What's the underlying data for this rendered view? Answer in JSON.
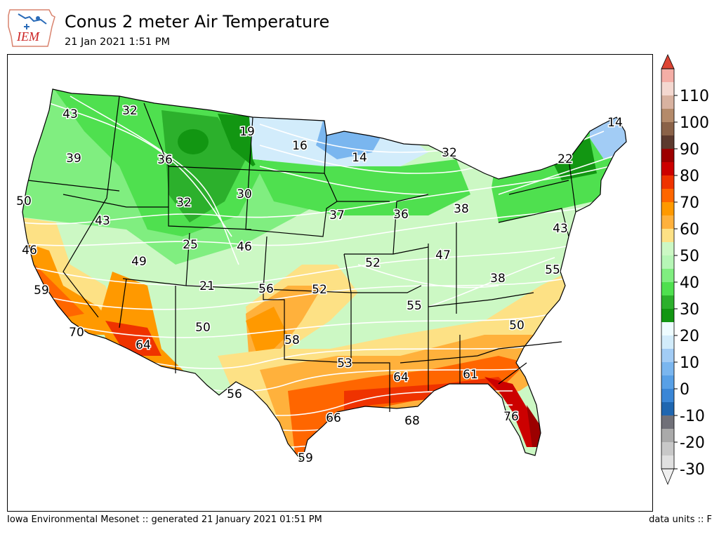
{
  "header": {
    "title": "Conus 2 meter Air Temperature",
    "subtitle": "21 Jan 2021 1:51 PM",
    "logo_text": "IEM"
  },
  "footer": {
    "left": "Iowa Environmental Mesonet :: generated 21 January 2021 01:51 PM",
    "right": "data units :: F"
  },
  "colorbar": {
    "ticks": [
      "-30",
      "-20",
      "-10",
      "0",
      "10",
      "20",
      "30",
      "40",
      "50",
      "60",
      "70",
      "80",
      "90",
      "100",
      "110"
    ],
    "bins": [
      {
        "from": -30,
        "to": -25,
        "color": "#e0e0e0"
      },
      {
        "from": -25,
        "to": -20,
        "color": "#c8c8c8"
      },
      {
        "from": -20,
        "to": -15,
        "color": "#aaaaaa"
      },
      {
        "from": -15,
        "to": -10,
        "color": "#707078"
      },
      {
        "from": -10,
        "to": -5,
        "color": "#1f66b0"
      },
      {
        "from": -5,
        "to": 0,
        "color": "#3a86d6"
      },
      {
        "from": 0,
        "to": 5,
        "color": "#58a0e6"
      },
      {
        "from": 5,
        "to": 10,
        "color": "#7ab6ef"
      },
      {
        "from": 10,
        "to": 15,
        "color": "#a2ccf5"
      },
      {
        "from": 15,
        "to": 20,
        "color": "#d2ecfb"
      },
      {
        "from": 20,
        "to": 25,
        "color": "#eefcff"
      },
      {
        "from": 25,
        "to": 30,
        "color": "#129612"
      },
      {
        "from": 30,
        "to": 35,
        "color": "#2cb02c"
      },
      {
        "from": 35,
        "to": 40,
        "color": "#4fe04f"
      },
      {
        "from": 40,
        "to": 45,
        "color": "#80ee80"
      },
      {
        "from": 45,
        "to": 50,
        "color": "#b6f6b6"
      },
      {
        "from": 50,
        "to": 55,
        "color": "#ccf8c4"
      },
      {
        "from": 55,
        "to": 60,
        "color": "#fde185"
      },
      {
        "from": 60,
        "to": 65,
        "color": "#ffb13c"
      },
      {
        "from": 65,
        "to": 70,
        "color": "#ff9900"
      },
      {
        "from": 70,
        "to": 75,
        "color": "#ff6600"
      },
      {
        "from": 75,
        "to": 80,
        "color": "#ef3300"
      },
      {
        "from": 80,
        "to": 85,
        "color": "#cc0000"
      },
      {
        "from": 85,
        "to": 90,
        "color": "#9c0000"
      },
      {
        "from": 90,
        "to": 95,
        "color": "#5c3a2e"
      },
      {
        "from": 95,
        "to": 100,
        "color": "#8a6248"
      },
      {
        "from": 100,
        "to": 105,
        "color": "#b48a6a"
      },
      {
        "from": 105,
        "to": 110,
        "color": "#d8b2a0"
      },
      {
        "from": 110,
        "to": 115,
        "color": "#f4d8d0"
      },
      {
        "from": 115,
        "to": 120,
        "color": "#f4aea6"
      }
    ],
    "under_color": "#f0f0f0",
    "over_color": "#dd4433"
  },
  "map": {
    "labels": [
      "43",
      "32",
      "19",
      "16",
      "14",
      "32",
      "22",
      "14",
      "39",
      "36",
      "50",
      "43",
      "32",
      "30",
      "37",
      "36",
      "38",
      "43",
      "46",
      "25",
      "46",
      "52",
      "47",
      "55",
      "49",
      "59",
      "21",
      "56",
      "52",
      "38",
      "50",
      "55",
      "50",
      "58",
      "70",
      "64",
      "53",
      "64",
      "61",
      "56",
      "66",
      "68",
      "76",
      "59"
    ]
  }
}
